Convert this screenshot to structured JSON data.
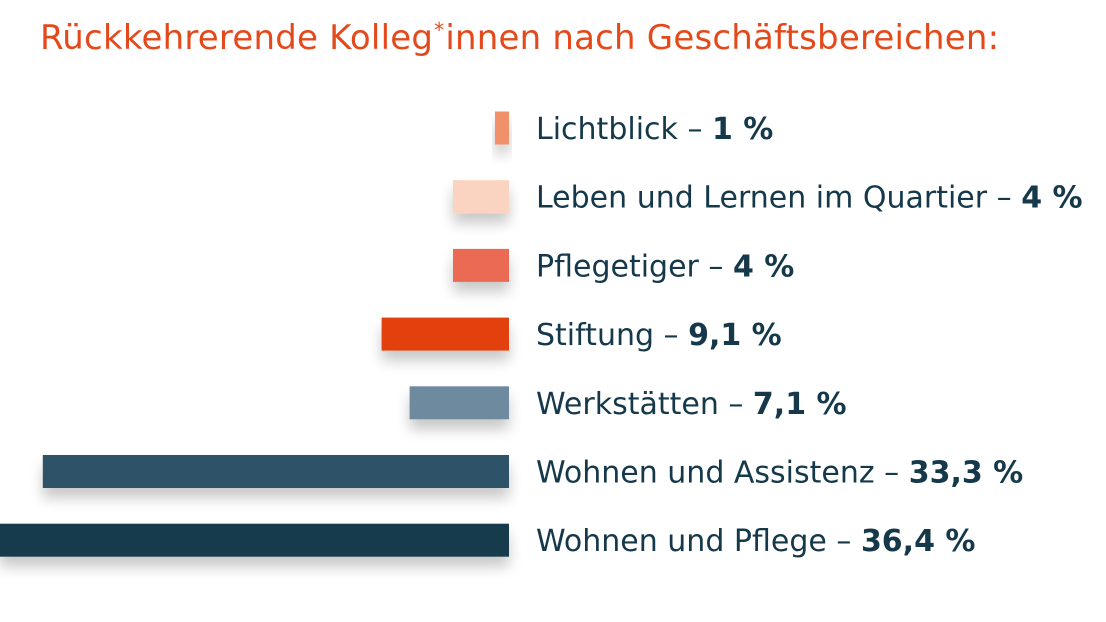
{
  "title": {
    "before": "Rückkehrerende Kolleg",
    "star": "*",
    "after": "innen nach Geschäftsbereichen:"
  },
  "chart_data": {
    "type": "bar",
    "orientation": "horizontal",
    "title": "Rückkehrerende Kolleg*innen nach Geschäftsbereichen:",
    "categories": [
      "Lichtblick",
      "Leben und Lernen im Quartier",
      "Pflegetiger",
      "Stiftung",
      "Werkstätten",
      "Wohnen und Assistenz",
      "Wohnen und Pflege"
    ],
    "values": [
      1,
      4,
      4,
      9.1,
      7.1,
      33.3,
      36.4
    ],
    "value_labels": [
      "1 %",
      "4 %",
      "4 %",
      "9,1 %",
      "7,1 %",
      "33,3 %",
      "36,4 %"
    ],
    "separator": " – ",
    "unit": "%",
    "colors": [
      "#f0916a",
      "#fbd3c1",
      "#ea6a52",
      "#e2400c",
      "#6e8a9e",
      "#2f5268",
      "#123a4b"
    ],
    "grid": false,
    "legend": "none"
  }
}
